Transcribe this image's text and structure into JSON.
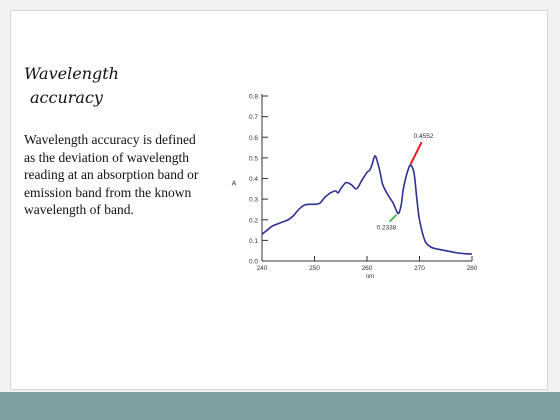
{
  "slide": {
    "title_line1": "Wavelength",
    "title_line2": "accuracy",
    "body": "Wavelength accuracy is defined as the deviation of wavelength reading at an absorption band or emission band from the known wavelength of band."
  },
  "chart_data": {
    "type": "line",
    "title": "",
    "xlabel": "nm",
    "ylabel": "A",
    "xlim": [
      240,
      280
    ],
    "ylim": [
      0,
      0.8
    ],
    "x_ticks": [
      "240",
      "250",
      "260",
      "270",
      "280"
    ],
    "y_ticks": [
      "0.0",
      "0.1",
      "0.2",
      "0.3",
      "0.4",
      "0.5",
      "0.6",
      "0.7",
      "0.8"
    ],
    "grid": false,
    "line_color": "#2e3192",
    "series": [
      {
        "x": [
          240,
          241,
          242,
          243,
          244,
          245,
          246,
          247,
          248,
          249,
          250,
          251,
          252,
          252.5,
          253,
          254,
          254.5,
          255,
          256,
          257,
          258,
          259,
          260,
          260.5,
          261,
          261.5,
          262,
          262.5,
          263,
          264,
          265,
          265.5,
          266,
          266.5,
          267,
          268,
          268.5,
          269,
          269.5,
          270,
          271,
          272,
          273,
          274,
          275,
          276,
          277,
          278,
          279,
          280
        ],
        "y": [
          0.13,
          0.15,
          0.17,
          0.18,
          0.19,
          0.2,
          0.22,
          0.25,
          0.27,
          0.275,
          0.275,
          0.28,
          0.31,
          0.32,
          0.33,
          0.34,
          0.33,
          0.35,
          0.38,
          0.37,
          0.35,
          0.39,
          0.43,
          0.44,
          0.47,
          0.51,
          0.48,
          0.43,
          0.37,
          0.32,
          0.28,
          0.25,
          0.23,
          0.27,
          0.36,
          0.455,
          0.46,
          0.42,
          0.3,
          0.2,
          0.1,
          0.07,
          0.06,
          0.055,
          0.05,
          0.045,
          0.04,
          0.037,
          0.035,
          0.034
        ]
      }
    ],
    "annotations": [
      {
        "text": "0.4552",
        "color": "#e02020",
        "x": 268.5,
        "y": 0.455
      },
      {
        "text": "0.2338",
        "color": "#30b030",
        "x": 266,
        "y": 0.234
      }
    ]
  }
}
